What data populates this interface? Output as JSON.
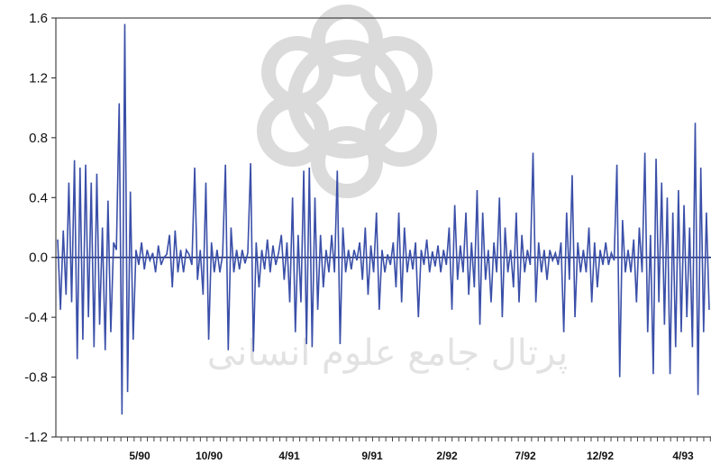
{
  "chart_data": {
    "type": "line",
    "title": "",
    "xlabel": "",
    "ylabel": "",
    "ylim": [
      -1.2,
      1.6
    ],
    "y_ticks": [
      "1.6",
      "1.2",
      "0.8",
      "0.4",
      "0.0",
      "-0.4",
      "-0.8",
      "-1.2"
    ],
    "x_tick_labels": [
      "5/90",
      "10/90",
      "4/91",
      "9/91",
      "2/92",
      "7/92",
      "12/92",
      "4/93"
    ],
    "grid": false,
    "legend": "none",
    "series_color": "#3a4fa8",
    "series": [
      {
        "values": [
          0.12,
          -0.35,
          0.18,
          -0.25,
          0.5,
          -0.3,
          0.65,
          -0.68,
          0.6,
          -0.55,
          0.62,
          -0.4,
          0.5,
          -0.6,
          0.56,
          -0.45,
          0.2,
          -0.62,
          0.38,
          -0.5,
          0.1,
          0.05,
          1.03,
          -1.05,
          1.56,
          -0.9,
          0.44,
          -0.55,
          0.05,
          -0.05,
          0.1,
          -0.08,
          0.05,
          -0.02,
          0.03,
          -0.1,
          0.08,
          -0.05,
          0.0,
          0.02,
          0.15,
          -0.2,
          0.18,
          -0.1,
          0.05,
          -0.1,
          0.05,
          0.02,
          -0.05,
          0.6,
          -0.15,
          0.05,
          -0.25,
          0.5,
          -0.55,
          0.1,
          -0.1,
          0.05,
          -0.1,
          0.02,
          0.62,
          -0.62,
          0.2,
          -0.1,
          0.05,
          -0.08,
          0.05,
          -0.04,
          0.03,
          0.63,
          -0.63,
          0.1,
          -0.2,
          0.05,
          -0.08,
          0.12,
          -0.1,
          0.08,
          -0.05,
          0.03,
          0.15,
          -0.15,
          0.1,
          -0.3,
          0.4,
          -0.5,
          0.15,
          -0.3,
          0.58,
          -0.58,
          0.6,
          -0.6,
          0.4,
          -0.35,
          0.15,
          -0.2,
          0.05,
          -0.1,
          0.15,
          -0.1,
          0.58,
          -0.58,
          0.2,
          -0.1,
          0.05,
          -0.08,
          0.05,
          -0.02,
          0.1,
          -0.15,
          0.2,
          -0.25,
          0.08,
          -0.1,
          0.3,
          -0.35,
          0.05,
          -0.1,
          0.02,
          -0.05,
          0.1,
          -0.2,
          0.3,
          -0.3,
          0.2,
          -0.1,
          0.05,
          -0.08,
          0.1,
          -0.4,
          0.05,
          -0.05,
          0.12,
          -0.1,
          0.04,
          -0.06,
          0.08,
          -0.1,
          0.05,
          -0.05,
          0.2,
          -0.35,
          0.35,
          -0.15,
          0.08,
          -0.1,
          0.3,
          -0.25,
          0.1,
          -0.2,
          0.45,
          -0.45,
          0.3,
          -0.15,
          0.05,
          -0.3,
          0.1,
          -0.1,
          0.4,
          -0.4,
          0.2,
          -0.1,
          0.05,
          -0.2,
          0.3,
          -0.3,
          0.15,
          -0.1,
          0.05,
          -0.05,
          0.7,
          -0.3,
          0.1,
          -0.1,
          0.05,
          -0.15,
          0.05,
          -0.02,
          0.03,
          -0.05,
          0.1,
          -0.5,
          0.3,
          -0.15,
          0.55,
          -0.4,
          0.1,
          -0.1,
          0.05,
          -0.1,
          0.2,
          -0.3,
          0.1,
          -0.2,
          0.05,
          -0.05,
          0.1,
          -0.05,
          0.03,
          -0.02,
          0.62,
          -0.8,
          0.25,
          -0.1,
          0.05,
          -0.1,
          0.12,
          -0.3,
          0.2,
          -0.1,
          0.7,
          -0.5,
          0.15,
          -0.78,
          0.66,
          -0.3,
          0.5,
          -0.45,
          0.4,
          -0.78,
          0.3,
          -0.6,
          0.45,
          -0.5,
          0.35,
          -0.4,
          0.2,
          -0.6,
          0.9,
          -0.92,
          0.6,
          -0.5,
          0.3,
          -0.35
        ]
      }
    ]
  },
  "watermark": {
    "text": "پرتال جامع علوم انسانی"
  }
}
